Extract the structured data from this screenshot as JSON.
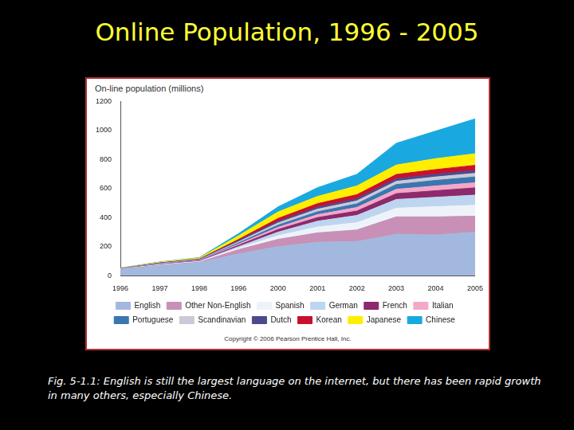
{
  "chart_data": {
    "type": "area",
    "title": "Online Population, 1996 - 2005",
    "y_label": "On-line population (millions)",
    "caption": "Fig. 5-1.1:  English is still the largest language on the internet, but there has been rapid growth in many others, especially Chinese.",
    "annotations": [
      "Copyright © 2006 Pearson Prentice Hall, Inc."
    ],
    "categories": [
      "1996",
      "1997",
      "1998",
      "1996",
      "2000",
      "2001",
      "2002",
      "2003",
      "2004",
      "2005"
    ],
    "stacked": true,
    "grid": false,
    "legend": "bottom",
    "ylim": [
      0,
      1200
    ],
    "yticks": [
      0,
      200,
      400,
      600,
      800,
      1000,
      1200
    ],
    "series": [
      {
        "name": "English",
        "color": "#a3b8de",
        "values": [
          45,
          70,
          90,
          150,
          200,
          230,
          235,
          285,
          280,
          300
        ]
      },
      {
        "name": "Other Non-English",
        "color": "#c890b6",
        "values": [
          0,
          2,
          3,
          30,
          50,
          65,
          80,
          120,
          125,
          110
        ]
      },
      {
        "name": "Spanish",
        "color": "#eef3fa",
        "values": [
          0,
          2,
          3,
          10,
          25,
          40,
          50,
          60,
          70,
          75
        ]
      },
      {
        "name": "German",
        "color": "#bdd5ef",
        "values": [
          1,
          3,
          3,
          10,
          25,
          40,
          50,
          60,
          65,
          70
        ]
      },
      {
        "name": "French",
        "color": "#8c2a6c",
        "values": [
          1,
          2,
          3,
          10,
          18,
          25,
          30,
          40,
          45,
          50
        ]
      },
      {
        "name": "Italian",
        "color": "#f3a7c9",
        "values": [
          0,
          2,
          2,
          8,
          15,
          20,
          25,
          30,
          33,
          35
        ]
      },
      {
        "name": "Portuguese",
        "color": "#3a76b0",
        "values": [
          0,
          2,
          2,
          8,
          15,
          20,
          25,
          33,
          38,
          40
        ]
      },
      {
        "name": "Scandinavian",
        "color": "#c9c9d9",
        "values": [
          1,
          2,
          3,
          8,
          15,
          18,
          20,
          22,
          24,
          25
        ]
      },
      {
        "name": "Dutch",
        "color": "#4a4a8c",
        "values": [
          1,
          2,
          3,
          8,
          11,
          13,
          15,
          17,
          18,
          20
        ]
      },
      {
        "name": "Korean",
        "color": "#c8102e",
        "values": [
          0,
          1,
          2,
          8,
          20,
          25,
          28,
          30,
          33,
          35
        ]
      },
      {
        "name": "Japanese",
        "color": "#ffee00",
        "values": [
          2,
          5,
          7,
          25,
          45,
          50,
          60,
          65,
          75,
          80
        ]
      },
      {
        "name": "Chinese",
        "color": "#19a9e0",
        "values": [
          1,
          2,
          3,
          15,
          35,
          60,
          80,
          150,
          190,
          240
        ]
      }
    ]
  }
}
